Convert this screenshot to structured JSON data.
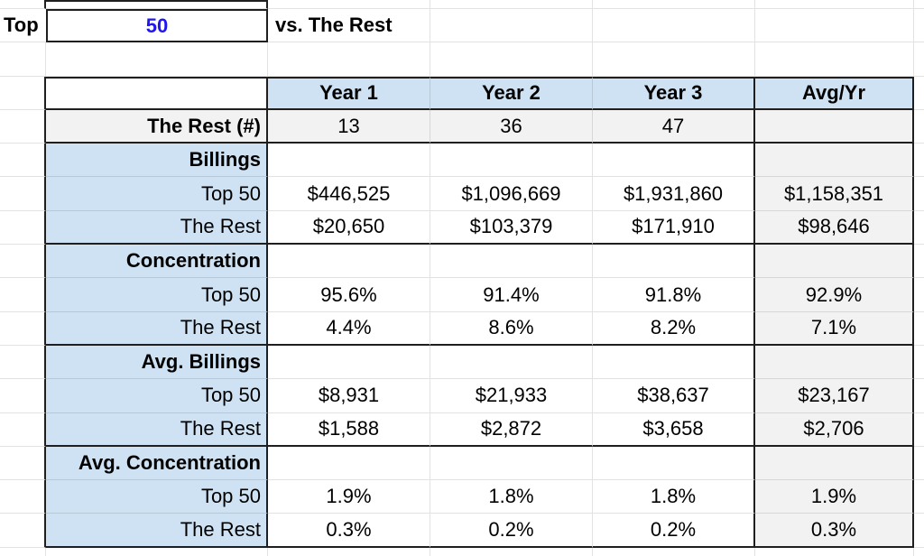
{
  "top_bar": {
    "label": "Top",
    "input_value": "50",
    "suffix": "vs. The Rest"
  },
  "table": {
    "header": [
      "",
      "Year 1",
      "Year 2",
      "Year 3",
      "Avg/Yr"
    ],
    "rows": [
      {
        "label": "The Rest (#)",
        "type": "count",
        "values": [
          "13",
          "36",
          "47",
          ""
        ]
      },
      {
        "label": "Billings",
        "type": "section",
        "values": [
          "",
          "",
          "",
          ""
        ]
      },
      {
        "label": "Top 50",
        "type": "data",
        "values": [
          "$446,525",
          "$1,096,669",
          "$1,931,860",
          "$1,158,351"
        ]
      },
      {
        "label": "The Rest",
        "type": "data-end",
        "values": [
          "$20,650",
          "$103,379",
          "$171,910",
          "$98,646"
        ]
      },
      {
        "label": "Concentration",
        "type": "section",
        "values": [
          "",
          "",
          "",
          ""
        ]
      },
      {
        "label": "Top 50",
        "type": "data",
        "values": [
          "95.6%",
          "91.4%",
          "91.8%",
          "92.9%"
        ]
      },
      {
        "label": "The Rest",
        "type": "data-end",
        "values": [
          "4.4%",
          "8.6%",
          "8.2%",
          "7.1%"
        ]
      },
      {
        "label": "Avg. Billings",
        "type": "section",
        "values": [
          "",
          "",
          "",
          ""
        ]
      },
      {
        "label": "Top 50",
        "type": "data",
        "values": [
          "$8,931",
          "$21,933",
          "$38,637",
          "$23,167"
        ]
      },
      {
        "label": "The Rest",
        "type": "data-end",
        "values": [
          "$1,588",
          "$2,872",
          "$3,658",
          "$2,706"
        ]
      },
      {
        "label": "Avg. Concentration",
        "type": "section",
        "values": [
          "",
          "",
          "",
          ""
        ]
      },
      {
        "label": "Top 50",
        "type": "data",
        "values": [
          "1.9%",
          "1.8%",
          "1.8%",
          "1.9%"
        ]
      },
      {
        "label": "The Rest",
        "type": "data-end",
        "values": [
          "0.3%",
          "0.2%",
          "0.2%",
          "0.3%"
        ]
      }
    ]
  },
  "colors": {
    "header_fill": "#cfe2f3",
    "label_fill": "#cfe2f3",
    "gray_fill": "#f2f2f2",
    "input_text": "#1f16f0",
    "border": "#1f1f1f"
  }
}
